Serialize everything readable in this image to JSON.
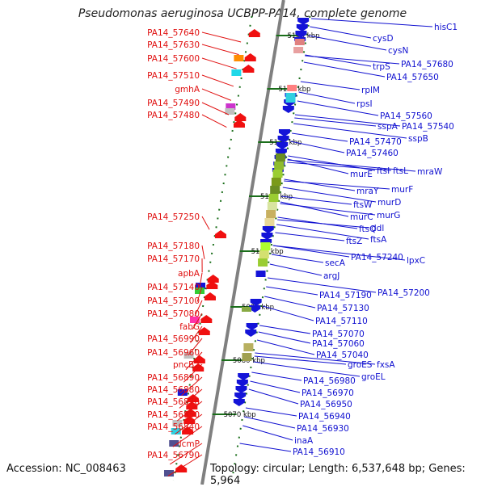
{
  "title": "Pseudomonas aeruginosa UCBPP-PA14, complete genome",
  "accession": "Accession: NC_008463",
  "topology": "Topology: circular; Length: 6,537,648 bp; Genes: 5,964",
  "scale_labels": [
    "5140 kbp",
    "5130 kbp",
    "5120 kbp",
    "5110 kbp",
    "5100 kbp",
    "5090 kbp",
    "5080 kbp",
    "5070 kbp"
  ],
  "left_genes": [
    "PA14_57640",
    "PA14_57630",
    "PA14_57600",
    "PA14_57510",
    "gmhA",
    "PA14_57490",
    "PA14_57480",
    "PA14_57250",
    "PA14_57180",
    "PA14_57170",
    "apbA",
    "PA14_57140",
    "PA14_57100",
    "PA14_57080",
    "fabG",
    "PA14_56990",
    "PA14_56960",
    "pncB2",
    "PA14_56890",
    "PA14_56880",
    "PA14_56870",
    "PA14_56850",
    "PA14_56840",
    "icmP",
    "PA14_56790"
  ],
  "right_genes": [
    "hisC1",
    "cysD",
    "cysN",
    "PA14_57680",
    "trpS",
    "PA14_57650",
    "rplM",
    "rpsI",
    "PA14_57560",
    "sspA",
    "PA14_57540",
    "sspB",
    "PA14_57470",
    "PA14_57460",
    "ftsI",
    "ftsL",
    "mraW",
    "murE",
    "murF",
    "mraY",
    "murD",
    "ftsW",
    "murG",
    "murC",
    "ddl",
    "ftsQ",
    "ftsA",
    "ftsZ",
    "PA14_57240",
    "lpxC",
    "secA",
    "argJ",
    "PA14_57200",
    "PA14_57190",
    "PA14_57130",
    "PA14_57110",
    "PA14_57070",
    "PA14_57060",
    "PA14_57040",
    "groES",
    "fxsA",
    "groEL",
    "PA14_56980",
    "PA14_56970",
    "PA14_56950",
    "PA14_56940",
    "PA14_56930",
    "inaA",
    "PA14_56910"
  ],
  "colors": {
    "left_label": "#e01010",
    "right_label": "#1010d0",
    "backbone": "#808080",
    "scale_tick": "#1a6e1a"
  }
}
